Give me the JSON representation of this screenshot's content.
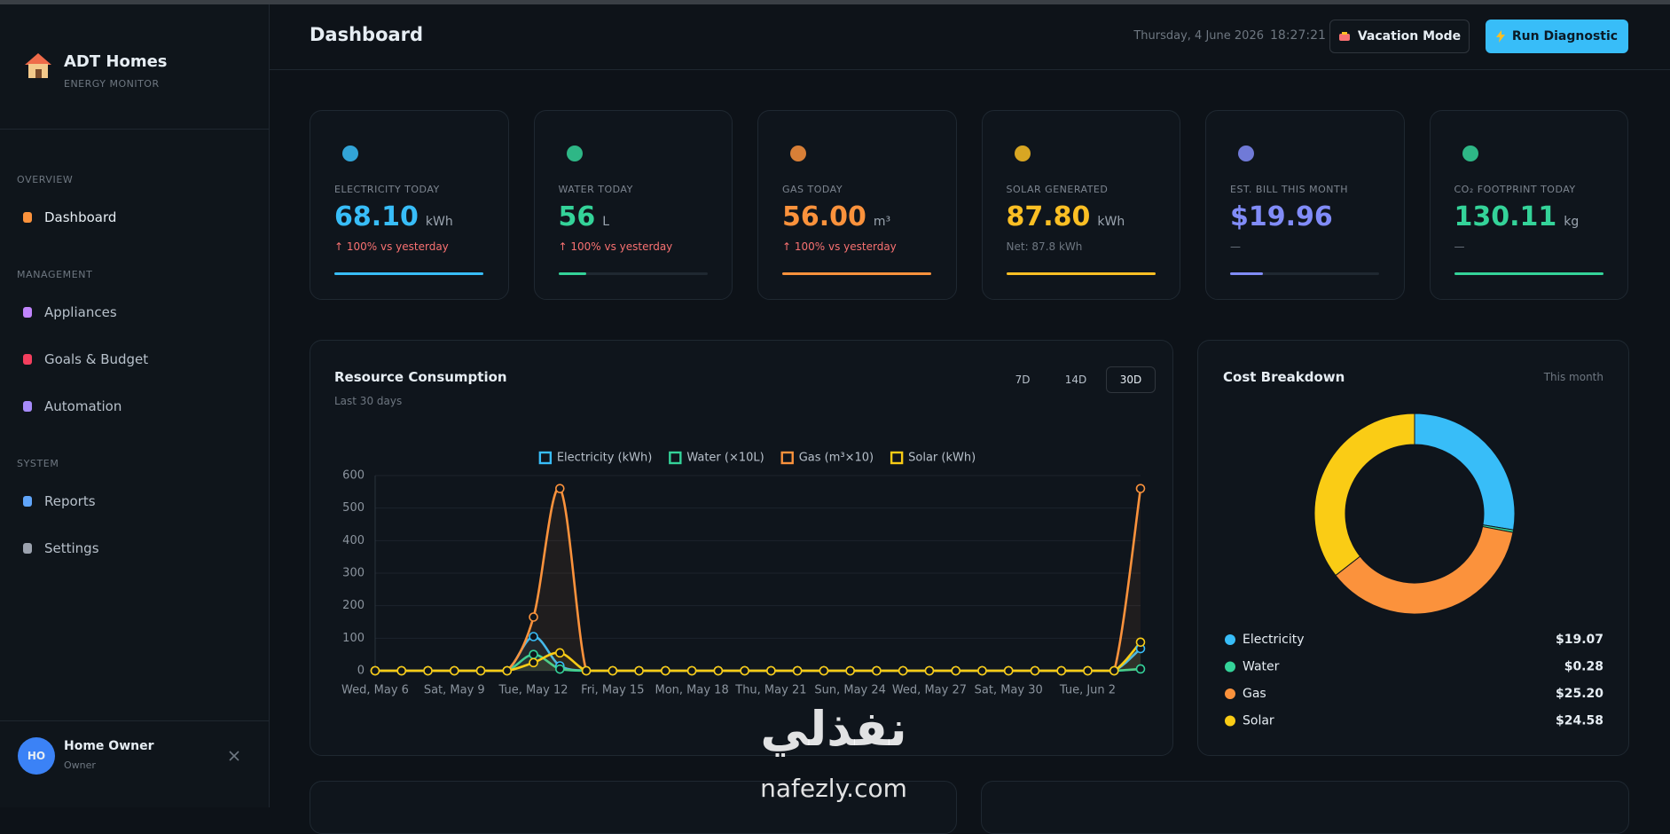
{
  "sidebar": {
    "brand": "ADT Homes",
    "tagline": "ENERGY MONITOR",
    "sections": [
      {
        "heading": "OVERVIEW",
        "items": [
          "Dashboard"
        ]
      },
      {
        "heading": "MANAGEMENT",
        "items": [
          "Appliances",
          "Goals & Budget",
          "Automation"
        ]
      },
      {
        "heading": "SYSTEM",
        "items": [
          "Reports",
          "Settings"
        ]
      }
    ],
    "user": {
      "initials": "HO",
      "name": "Home Owner",
      "role": "Owner"
    }
  },
  "header": {
    "title": "Dashboard",
    "date": "Thursday, 4 June 2026",
    "time": "18:27:21",
    "buttons": [
      "Vacation Mode",
      "Run Diagnostic"
    ]
  },
  "cards": [
    {
      "label": "ELECTRICITY TODAY",
      "value": "68.10",
      "unit": "kWh",
      "note": "↑ 100% vs yesterday",
      "color": "#38bdf8",
      "note_color": "#f87171",
      "progress": 100
    },
    {
      "label": "WATER TODAY",
      "value": "56",
      "unit": "L",
      "note": "↑ 100% vs yesterday",
      "color": "#34d399",
      "note_color": "#f87171",
      "progress": 19
    },
    {
      "label": "GAS TODAY",
      "value": "56.00",
      "unit": "m³",
      "note": "↑ 100% vs yesterday",
      "color": "#fb923c",
      "note_color": "#f87171",
      "progress": 100
    },
    {
      "label": "SOLAR GENERATED",
      "value": "87.80",
      "unit": "kWh",
      "note": "Net: 87.8 kWh",
      "color": "#fbbf24",
      "note_color": "#6e7781",
      "progress": 100
    },
    {
      "label": "EST. BILL THIS MONTH",
      "value": "$19.96",
      "unit": "",
      "note": "—",
      "color": "#818cf8",
      "note_color": "#6e7781",
      "progress": 22
    },
    {
      "label": "CO₂ FOOTPRINT TODAY",
      "value": "130.11",
      "unit": "kg",
      "note": "—",
      "color": "#34d399",
      "note_color": "#6e7781",
      "progress": 100
    }
  ],
  "chart_data": [
    {
      "type": "line",
      "title": "Resource Consumption",
      "subtitle": "Last 30 days",
      "range_options": [
        "7D",
        "14D",
        "30D"
      ],
      "categories": [
        "Wed, May 6",
        null,
        null,
        "Sat, May 9",
        null,
        null,
        "Tue, May 12",
        null,
        null,
        "Fri, May 15",
        null,
        null,
        "Mon, May 18",
        null,
        null,
        "Thu, May 21",
        null,
        null,
        "Sun, May 24",
        null,
        null,
        "Wed, May 27",
        null,
        null,
        "Sat, May 30",
        null,
        null,
        "Tue, Jun 2",
        null,
        null
      ],
      "series": [
        {
          "name": "Electricity (kWh)",
          "color": "#38bdf8",
          "values": [
            0,
            0,
            0,
            0,
            0,
            0,
            105,
            15,
            0,
            0,
            0,
            0,
            0,
            0,
            0,
            0,
            0,
            0,
            0,
            0,
            0,
            0,
            0,
            0,
            0,
            0,
            0,
            0,
            0,
            68.1
          ]
        },
        {
          "name": "Water (×10L)",
          "color": "#34d399",
          "values": [
            0,
            0,
            0,
            0,
            0,
            0,
            50,
            5,
            0,
            0,
            0,
            0,
            0,
            0,
            0,
            0,
            0,
            0,
            0,
            0,
            0,
            0,
            0,
            0,
            0,
            0,
            0,
            0,
            0,
            5.6
          ]
        },
        {
          "name": "Gas (m³×10)",
          "color": "#fb923c",
          "values": [
            0,
            0,
            0,
            0,
            0,
            0,
            165,
            560,
            0,
            0,
            0,
            0,
            0,
            0,
            0,
            0,
            0,
            0,
            0,
            0,
            0,
            0,
            0,
            0,
            0,
            0,
            0,
            0,
            0,
            560
          ]
        },
        {
          "name": "Solar (kWh)",
          "color": "#facc15",
          "values": [
            0,
            0,
            0,
            0,
            0,
            0,
            25,
            55,
            0,
            0,
            0,
            0,
            0,
            0,
            0,
            0,
            0,
            0,
            0,
            0,
            0,
            0,
            0,
            0,
            0,
            0,
            0,
            0,
            0,
            87.8
          ]
        }
      ],
      "ylim": [
        0,
        600
      ],
      "yticks": [
        0,
        100,
        200,
        300,
        400,
        500,
        600
      ],
      "grid": true
    },
    {
      "type": "donut",
      "title": "Cost Breakdown",
      "subtitle": "This month",
      "categories": [
        "Electricity",
        "Water",
        "Gas",
        "Solar"
      ],
      "values": [
        19.07,
        0.28,
        25.2,
        24.58
      ],
      "value_labels": [
        "$19.07",
        "$0.28",
        "$25.20",
        "$24.58"
      ],
      "colors": [
        "#38bdf8",
        "#34d399",
        "#fb923c",
        "#facc15"
      ]
    }
  ],
  "watermark": {
    "arabic": "نفذلي",
    "latin": "nafezly.com"
  }
}
